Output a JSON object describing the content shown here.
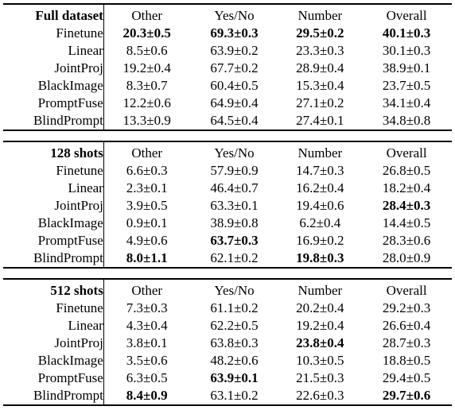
{
  "columns": [
    "Other",
    "Yes/No",
    "Number",
    "Overall"
  ],
  "sections": [
    {
      "title": "Full dataset",
      "rows": [
        {
          "method": "Finetune",
          "cells": [
            {
              "v": "20.3±0.5",
              "b": true
            },
            {
              "v": "69.3±0.3",
              "b": true
            },
            {
              "v": "29.5±0.2",
              "b": true
            },
            {
              "v": "40.1±0.3",
              "b": true
            }
          ]
        },
        {
          "method": "Linear",
          "cells": [
            {
              "v": "8.5±0.6",
              "b": false
            },
            {
              "v": "63.9±0.2",
              "b": false
            },
            {
              "v": "23.3±0.3",
              "b": false
            },
            {
              "v": "30.1±0.3",
              "b": false
            }
          ]
        },
        {
          "method": "JointProj",
          "cells": [
            {
              "v": "19.2±0.4",
              "b": false
            },
            {
              "v": "67.7±0.2",
              "b": false
            },
            {
              "v": "28.9±0.4",
              "b": false
            },
            {
              "v": "38.9±0.1",
              "b": false
            }
          ]
        },
        {
          "method": "BlackImage",
          "cells": [
            {
              "v": "8.3±0.7",
              "b": false
            },
            {
              "v": "60.4±0.5",
              "b": false
            },
            {
              "v": "15.3±0.4",
              "b": false
            },
            {
              "v": "23.7±0.5",
              "b": false
            }
          ]
        },
        {
          "method": "PromptFuse",
          "cells": [
            {
              "v": "12.2±0.6",
              "b": false
            },
            {
              "v": "64.9±0.4",
              "b": false
            },
            {
              "v": "27.1±0.2",
              "b": false
            },
            {
              "v": "34.1±0.4",
              "b": false
            }
          ]
        },
        {
          "method": "BlindPrompt",
          "cells": [
            {
              "v": "13.3±0.9",
              "b": false
            },
            {
              "v": "64.5±0.4",
              "b": false
            },
            {
              "v": "27.4±0.1",
              "b": false
            },
            {
              "v": "34.8±0.8",
              "b": false
            }
          ]
        }
      ]
    },
    {
      "title": "128 shots",
      "rows": [
        {
          "method": "Finetune",
          "cells": [
            {
              "v": "6.6±0.3",
              "b": false
            },
            {
              "v": "57.9±0.9",
              "b": false
            },
            {
              "v": "14.7±0.3",
              "b": false
            },
            {
              "v": "26.8±0.5",
              "b": false
            }
          ]
        },
        {
          "method": "Linear",
          "cells": [
            {
              "v": "2.3±0.1",
              "b": false
            },
            {
              "v": "46.4±0.7",
              "b": false
            },
            {
              "v": "16.2±0.4",
              "b": false
            },
            {
              "v": "18.2±0.4",
              "b": false
            }
          ]
        },
        {
          "method": "JointProj",
          "cells": [
            {
              "v": "3.9±0.5",
              "b": false
            },
            {
              "v": "63.3±0.1",
              "b": false
            },
            {
              "v": "19.4±0.6",
              "b": false
            },
            {
              "v": "28.4±0.3",
              "b": true
            }
          ]
        },
        {
          "method": "BlackImage",
          "cells": [
            {
              "v": "0.9±0.1",
              "b": false
            },
            {
              "v": "38.9±0.8",
              "b": false
            },
            {
              "v": "6.2±0.4",
              "b": false
            },
            {
              "v": "14.4±0.5",
              "b": false
            }
          ]
        },
        {
          "method": "PromptFuse",
          "cells": [
            {
              "v": "4.9±0.6",
              "b": false
            },
            {
              "v": "63.7±0.3",
              "b": true
            },
            {
              "v": "16.9±0.2",
              "b": false
            },
            {
              "v": "28.3±0.6",
              "b": false
            }
          ]
        },
        {
          "method": "BlindPrompt",
          "cells": [
            {
              "v": "8.0±1.1",
              "b": true
            },
            {
              "v": "62.1±0.2",
              "b": false
            },
            {
              "v": "19.8±0.3",
              "b": true
            },
            {
              "v": "28.0±0.9",
              "b": false
            }
          ]
        }
      ]
    },
    {
      "title": "512 shots",
      "rows": [
        {
          "method": "Finetune",
          "cells": [
            {
              "v": "7.3±0.3",
              "b": false
            },
            {
              "v": "61.1±0.2",
              "b": false
            },
            {
              "v": "20.2±0.4",
              "b": false
            },
            {
              "v": "29.2±0.3",
              "b": false
            }
          ]
        },
        {
          "method": "Linear",
          "cells": [
            {
              "v": "4.3±0.4",
              "b": false
            },
            {
              "v": "62.2±0.5",
              "b": false
            },
            {
              "v": "19.2±0.4",
              "b": false
            },
            {
              "v": "26.6±0.4",
              "b": false
            }
          ]
        },
        {
          "method": "JointProj",
          "cells": [
            {
              "v": "3.8±0.1",
              "b": false
            },
            {
              "v": "63.8±0.3",
              "b": false
            },
            {
              "v": "23.8±0.4",
              "b": true
            },
            {
              "v": "28.7±0.3",
              "b": false
            }
          ]
        },
        {
          "method": "BlackImage",
          "cells": [
            {
              "v": "3.5±0.6",
              "b": false
            },
            {
              "v": "48.2±0.6",
              "b": false
            },
            {
              "v": "10.3±0.5",
              "b": false
            },
            {
              "v": "18.8±0.5",
              "b": false
            }
          ]
        },
        {
          "method": "PromptFuse",
          "cells": [
            {
              "v": "6.3±0.5",
              "b": false
            },
            {
              "v": "63.9±0.1",
              "b": true
            },
            {
              "v": "21.5±0.3",
              "b": false
            },
            {
              "v": "29.4±0.5",
              "b": false
            }
          ]
        },
        {
          "method": "BlindPrompt",
          "cells": [
            {
              "v": "8.4±0.9",
              "b": true
            },
            {
              "v": "63.1±0.2",
              "b": false
            },
            {
              "v": "22.6±0.3",
              "b": false
            },
            {
              "v": "29.7±0.6",
              "b": true
            }
          ]
        }
      ]
    }
  ]
}
